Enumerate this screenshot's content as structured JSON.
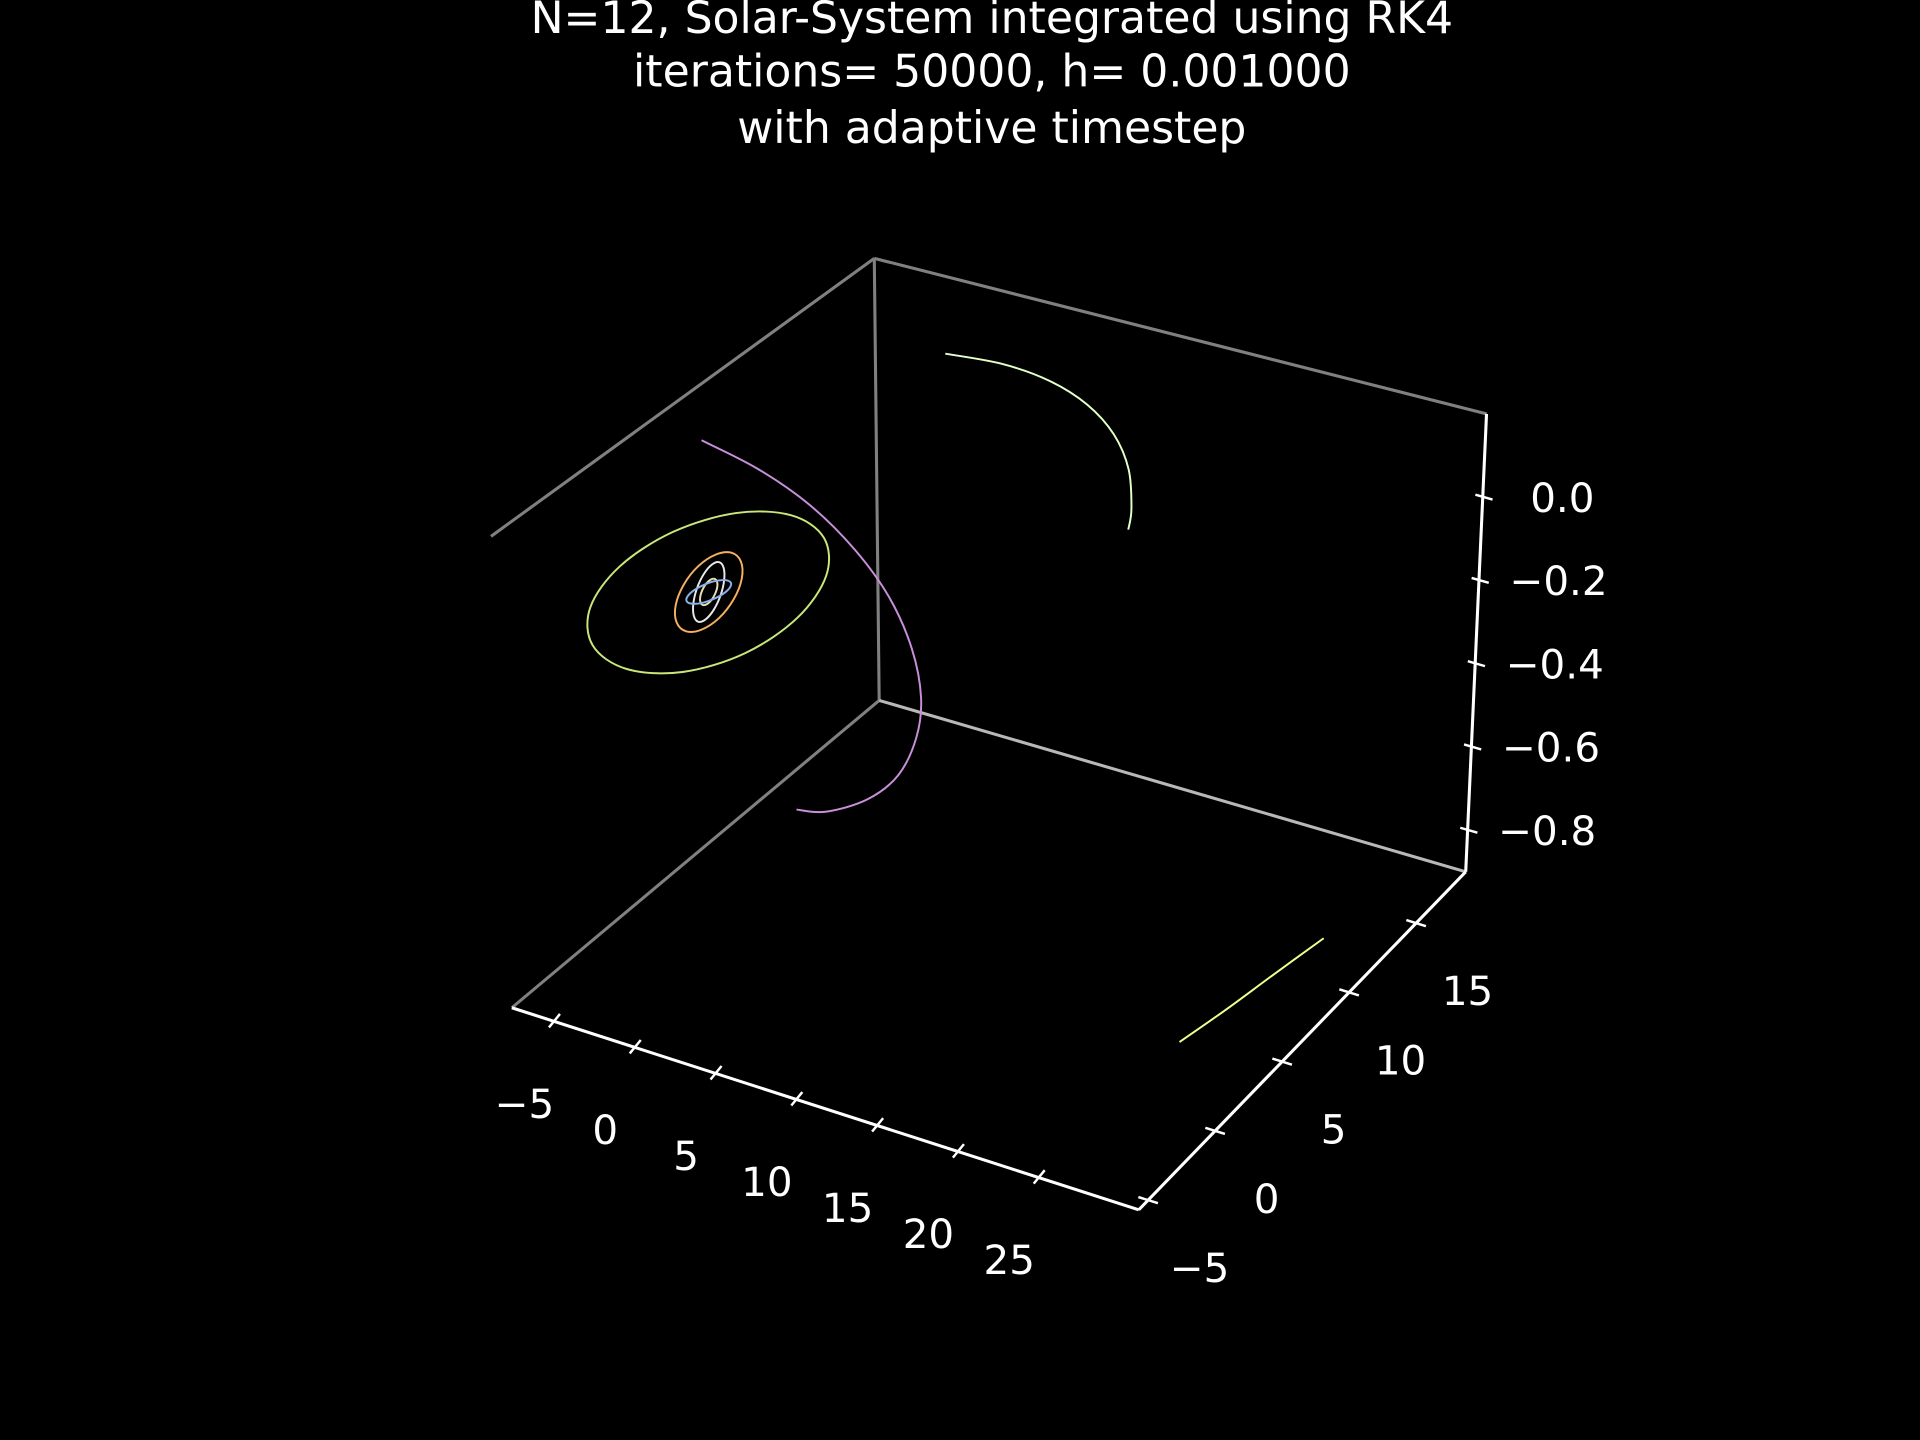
{
  "chart_data": {
    "type": "line3d",
    "title": [
      "N=12, Solar-System integrated using RK4",
      "iterations= 50000, h= 0.001000",
      "with adaptive timestep"
    ],
    "xlim": [
      -7.6,
      31.2
    ],
    "ylim": [
      -5.7,
      18.7
    ],
    "zlim": [
      -0.9,
      0.2
    ],
    "xticks": [
      {
        "value": -5,
        "label": "−5"
      },
      0,
      5,
      10,
      15,
      20,
      25
    ],
    "yticks": [
      {
        "value": -5,
        "label": "−5"
      },
      0,
      5,
      10,
      15
    ],
    "zticks": [
      {
        "value": 0,
        "label": "0.0"
      },
      {
        "value": -0.2,
        "label": "−0.2"
      },
      {
        "value": -0.4,
        "label": "−0.4"
      },
      {
        "value": -0.6,
        "label": "−0.6"
      },
      {
        "value": -0.8,
        "label": "−0.8"
      }
    ],
    "series": [
      {
        "color": "#e8e0b0",
        "x": [
          0.39,
          0.34,
          0.2,
          0,
          -0.2,
          -0.34,
          -0.39,
          -0.34,
          -0.2,
          0,
          0.2,
          0.34,
          0.39
        ],
        "y": [
          0,
          0.2,
          0.34,
          0.39,
          0.34,
          0.2,
          0,
          -0.2,
          -0.34,
          -0.39,
          -0.34,
          -0.2,
          0
        ],
        "z": [
          0,
          0.01,
          0.017,
          0.02,
          0.017,
          0.01,
          0,
          -0.01,
          -0.017,
          -0.02,
          -0.017,
          -0.01,
          0
        ]
      },
      {
        "color": "#e8e8e8",
        "x": [
          0.72,
          0.62,
          0.36,
          0,
          -0.36,
          -0.62,
          -0.72,
          -0.62,
          -0.36,
          0,
          0.36,
          0.62,
          0.72
        ],
        "y": [
          0,
          0.36,
          0.62,
          0.72,
          0.62,
          0.36,
          0,
          -0.36,
          -0.62,
          -0.72,
          -0.62,
          -0.36,
          0
        ],
        "z": [
          0,
          0.025,
          0.043,
          0.05,
          0.043,
          0.025,
          0,
          -0.025,
          -0.043,
          -0.05,
          -0.043,
          -0.025,
          0
        ]
      },
      {
        "color": "#8ab0e8",
        "x": [
          1,
          0.87,
          0.5,
          0,
          -0.5,
          -0.87,
          -1,
          -0.87,
          -0.5,
          0,
          0.5,
          0.87,
          1
        ],
        "y": [
          0,
          0.5,
          0.87,
          1,
          0.87,
          0.5,
          0,
          -0.5,
          -0.87,
          -1,
          -0.87,
          -0.5,
          0
        ],
        "z": [
          0.01,
          0.009,
          0.005,
          0,
          -0.005,
          -0.009,
          -0.01,
          -0.009,
          -0.005,
          0,
          0.005,
          0.009,
          0.01
        ]
      },
      {
        "color": "#f5b060",
        "x": [
          1.52,
          1.32,
          0.76,
          0,
          -0.76,
          -1.32,
          -1.52,
          -1.32,
          -0.76,
          0,
          0.76,
          1.32,
          1.52
        ],
        "y": [
          0,
          0.76,
          1.32,
          1.52,
          1.32,
          0.76,
          0,
          -0.76,
          -1.32,
          -1.52,
          -1.32,
          -0.76,
          0
        ],
        "z": [
          0,
          0.025,
          0.043,
          0.05,
          0.043,
          0.025,
          0,
          -0.025,
          -0.043,
          -0.05,
          -0.043,
          -0.025,
          0
        ]
      },
      {
        "color": "#c8e87a",
        "x": [
          5.4,
          4.68,
          2.7,
          0,
          -2.7,
          -4.68,
          -5.4,
          -4.68,
          -2.7,
          0,
          2.7,
          4.68,
          5.4
        ],
        "y": [
          0,
          2.7,
          4.68,
          5.4,
          4.68,
          2.7,
          0,
          -2.7,
          -4.68,
          -5.4,
          -4.68,
          -2.7,
          0
        ],
        "z": [
          0,
          0.015,
          0.026,
          0.03,
          0.026,
          0.015,
          0,
          -0.015,
          -0.026,
          -0.03,
          -0.026,
          -0.015,
          0
        ]
      },
      {
        "color": "#c890d8",
        "x": [
          -6.72,
          -4.75,
          -2.46,
          0,
          2.46,
          4.75,
          6.72,
          8.23,
          9.18,
          9.5,
          9.18,
          8.68
        ],
        "y": [
          6.72,
          8.23,
          9.18,
          9.5,
          9.18,
          8.23,
          6.72,
          4.75,
          2.46,
          0,
          -2.46,
          -3.86
        ],
        "z": [
          0.1,
          0.01,
          -0.08,
          -0.17,
          -0.25,
          -0.32,
          -0.37,
          -0.39,
          -0.4,
          -0.38,
          -0.34,
          -0.3
        ]
      },
      {
        "color": "#e4ffc8",
        "x": [
          -3.33,
          0,
          3.33,
          6.57,
          9.6,
          12.34,
          14.71,
          15.73
        ],
        "y": [
          18.91,
          19.2,
          18.91,
          18.04,
          16.63,
          14.71,
          12.34,
          11.01
        ],
        "z": [
          0,
          0,
          0,
          0,
          0,
          0,
          0,
          0
        ]
      },
      {
        "color": "#f0ff90",
        "x": [
          27.3,
          28.0,
          28.6,
          29.3
        ],
        "y": [
          1.9,
          4.6,
          7.3,
          10.2
        ],
        "z": [
          -0.8,
          -0.8,
          -0.8,
          -0.8
        ]
      }
    ]
  }
}
